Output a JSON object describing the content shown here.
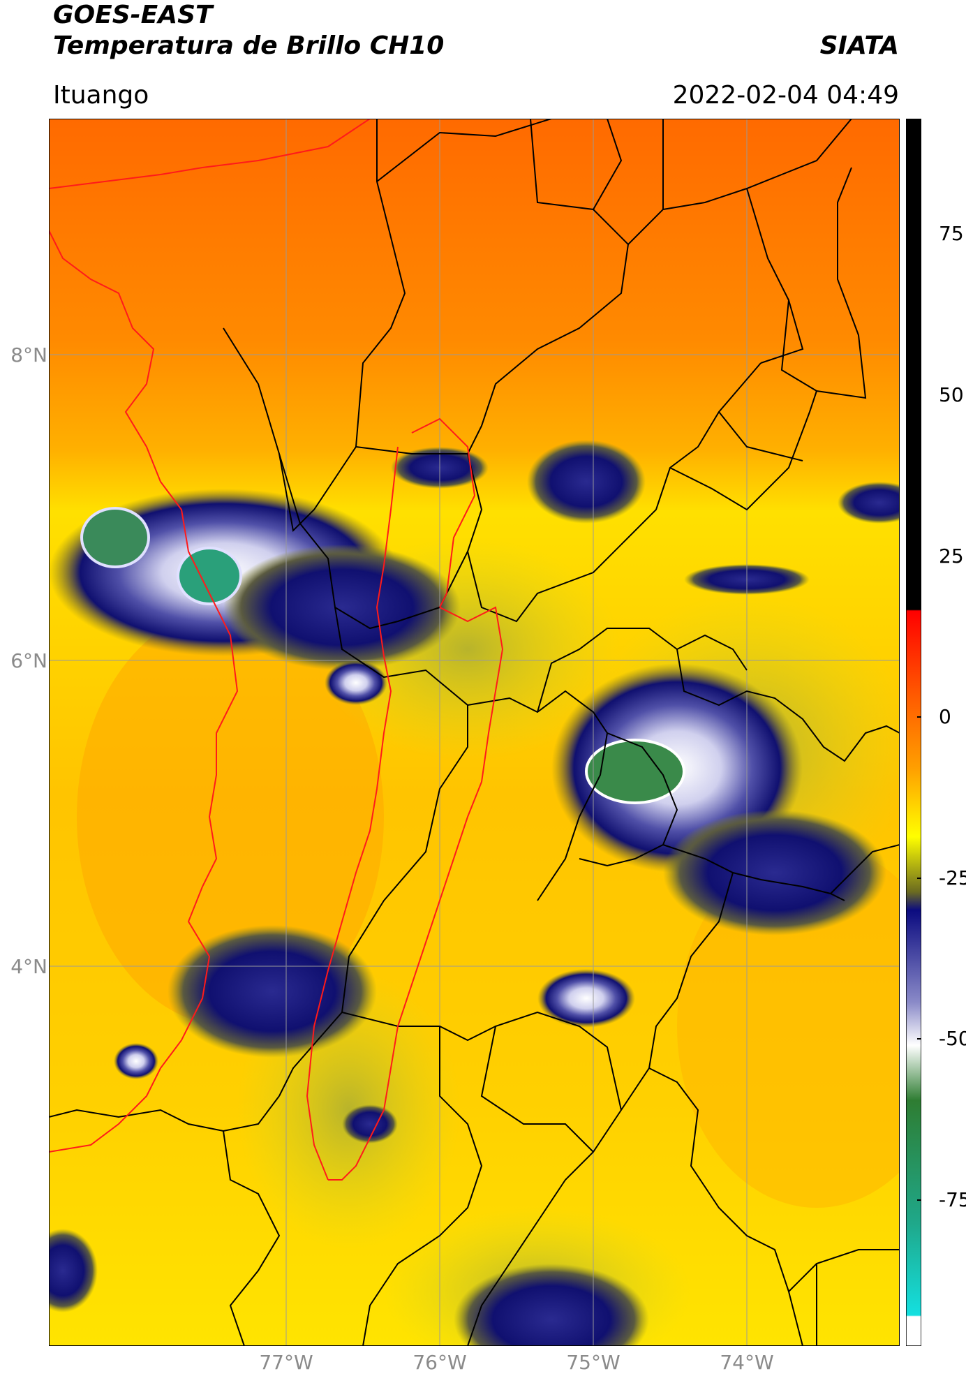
{
  "header": {
    "satellite": "GOES-EAST",
    "product": "Temperatura de Brillo CH10",
    "brand": "SIATA",
    "region": "Ituango",
    "datetime": "2022-02-04 04:49"
  },
  "map": {
    "lat_labels": [
      "8°N",
      "6°N",
      "4°N"
    ],
    "lon_labels": [
      "77°W",
      "76°W",
      "75°W",
      "74°W"
    ],
    "background_color": "#f9b800",
    "border_color_departments": "#000000",
    "border_color_highlight": "#ff1a1a",
    "grid_color": "#9a9a9a"
  },
  "colorbar": {
    "ticks": [
      "75",
      "50",
      "25",
      "0",
      "-25",
      "-50",
      "-75"
    ],
    "colors": {
      "hot": "#000000",
      "red": "#ff1000",
      "orange": "#ff8800",
      "yellow": "#ffff00",
      "olive": "#6b6b20",
      "navy": "#0b0b80",
      "white": "#ffffff",
      "green": "#2e7d32",
      "teal": "#1fa88a",
      "cyan": "#14e0e0"
    }
  }
}
